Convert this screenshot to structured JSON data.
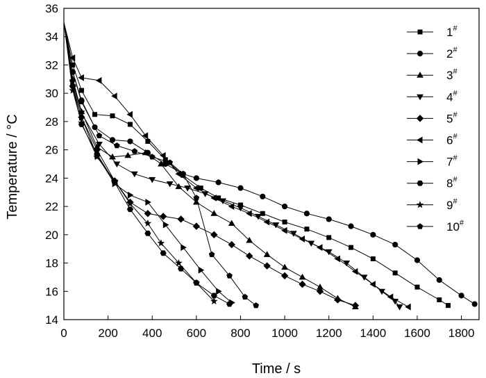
{
  "chart_data": {
    "type": "line",
    "xlabel": "Time / s",
    "ylabel": "Temperature / °C",
    "xlim": [
      0,
      1880
    ],
    "ylim": [
      14,
      36
    ],
    "xticks": [
      0,
      200,
      400,
      600,
      800,
      1000,
      1200,
      1400,
      1600,
      1800
    ],
    "yticks": [
      14,
      16,
      18,
      20,
      22,
      24,
      26,
      28,
      30,
      32,
      34,
      36
    ],
    "grid": false,
    "legend_position": "top-right",
    "series": [
      {
        "name": "1",
        "marker": "square",
        "x": [
          0,
          40,
          80,
          140,
          220,
          300,
          380,
          460,
          540,
          620,
          700,
          800,
          900,
          1000,
          1100,
          1200,
          1300,
          1400,
          1500,
          1600,
          1700,
          1740
        ],
        "y": [
          35,
          32,
          30.2,
          28.5,
          28.4,
          27.8,
          26.6,
          25.3,
          24.2,
          23.3,
          22.6,
          22.1,
          21.5,
          20.9,
          20.4,
          19.8,
          19.1,
          18.3,
          17.3,
          16.3,
          15.4,
          15.0
        ]
      },
      {
        "name": "2",
        "marker": "circle",
        "x": [
          0,
          40,
          80,
          140,
          220,
          300,
          380,
          460,
          540,
          600,
          700,
          800,
          900,
          1000,
          1100,
          1200,
          1300,
          1400,
          1500,
          1600,
          1700,
          1800,
          1860
        ],
        "y": [
          35,
          31.5,
          29.5,
          27.6,
          26.7,
          26.6,
          25.8,
          25.0,
          24.3,
          24.0,
          23.7,
          23.3,
          22.7,
          22.0,
          21.5,
          21.1,
          20.6,
          20.0,
          19.3,
          18.2,
          16.8,
          15.7,
          15.1
        ]
      },
      {
        "name": "3",
        "marker": "triangle-up",
        "x": [
          0,
          40,
          80,
          150,
          220,
          290,
          370,
          440,
          520,
          600,
          680,
          760,
          840,
          920,
          1000,
          1080,
          1160,
          1240,
          1320
        ],
        "y": [
          35,
          31,
          28.7,
          26.2,
          25.5,
          25.6,
          25.8,
          25.0,
          23.4,
          22.3,
          21.5,
          20.8,
          19.6,
          18.6,
          17.7,
          17.0,
          16.3,
          15.5,
          14.9
        ]
      },
      {
        "name": "4",
        "marker": "triangle-down",
        "x": [
          0,
          40,
          80,
          160,
          240,
          320,
          400,
          480,
          560,
          640,
          720,
          800,
          880,
          960,
          1040,
          1120,
          1200,
          1280,
          1360,
          1440,
          1500,
          1520
        ],
        "y": [
          35,
          30.8,
          28.6,
          26.4,
          25.0,
          24.3,
          23.9,
          23.6,
          23.3,
          22.9,
          22.4,
          21.9,
          21.3,
          20.7,
          20.1,
          19.4,
          18.8,
          18.0,
          17.0,
          16.0,
          15.3,
          14.9
        ]
      },
      {
        "name": "5",
        "marker": "diamond",
        "x": [
          0,
          40,
          80,
          150,
          230,
          300,
          380,
          450,
          530,
          600,
          680,
          760,
          840,
          920,
          1000,
          1080,
          1160,
          1240,
          1320
        ],
        "y": [
          35,
          30.5,
          28.3,
          26.0,
          23.8,
          22.3,
          21.5,
          21.3,
          21.1,
          20.6,
          20.0,
          19.3,
          18.5,
          17.8,
          17.1,
          16.5,
          16.0,
          15.4,
          15.0
        ]
      },
      {
        "name": "6",
        "marker": "triangle-left",
        "x": [
          0,
          40,
          80,
          160,
          230,
          300,
          370,
          450,
          520,
          600,
          680,
          760,
          840,
          920,
          1000,
          1080,
          1160,
          1240,
          1320,
          1400,
          1480,
          1560
        ],
        "y": [
          35,
          32.5,
          31.1,
          30.9,
          29.8,
          28.5,
          27.0,
          25.6,
          24.3,
          23.3,
          22.6,
          22.0,
          21.5,
          20.9,
          20.3,
          19.7,
          19.1,
          18.3,
          17.4,
          16.5,
          15.6,
          14.9
        ]
      },
      {
        "name": "7",
        "marker": "triangle-right",
        "x": [
          0,
          40,
          80,
          150,
          230,
          300,
          380,
          460,
          540,
          620,
          700,
          760
        ],
        "y": [
          35,
          30.6,
          28.3,
          25.6,
          23.6,
          22.8,
          22.3,
          20.7,
          19.1,
          17.5,
          16.0,
          15.2
        ]
      },
      {
        "name": "8",
        "marker": "hexagon",
        "x": [
          0,
          40,
          80,
          150,
          230,
          300,
          380,
          450,
          530,
          600,
          680,
          750
        ],
        "y": [
          35,
          30.5,
          27.8,
          25.7,
          23.7,
          21.8,
          20.1,
          18.7,
          17.6,
          16.6,
          15.7,
          15.1
        ]
      },
      {
        "name": "9",
        "marker": "star",
        "x": [
          0,
          40,
          80,
          150,
          230,
          300,
          380,
          440,
          520,
          600,
          680
        ],
        "y": [
          35,
          30.2,
          27.9,
          25.5,
          23.8,
          22.2,
          20.8,
          19.4,
          18.0,
          16.6,
          15.3
        ]
      },
      {
        "name": "10",
        "marker": "pentagon",
        "x": [
          0,
          40,
          80,
          160,
          240,
          320,
          400,
          480,
          540,
          600,
          670,
          750,
          820,
          870
        ],
        "y": [
          35,
          31.5,
          29.4,
          27.0,
          26.3,
          25.9,
          25.5,
          25.1,
          24.3,
          22.6,
          18.6,
          17.1,
          15.6,
          15.0
        ]
      }
    ]
  }
}
